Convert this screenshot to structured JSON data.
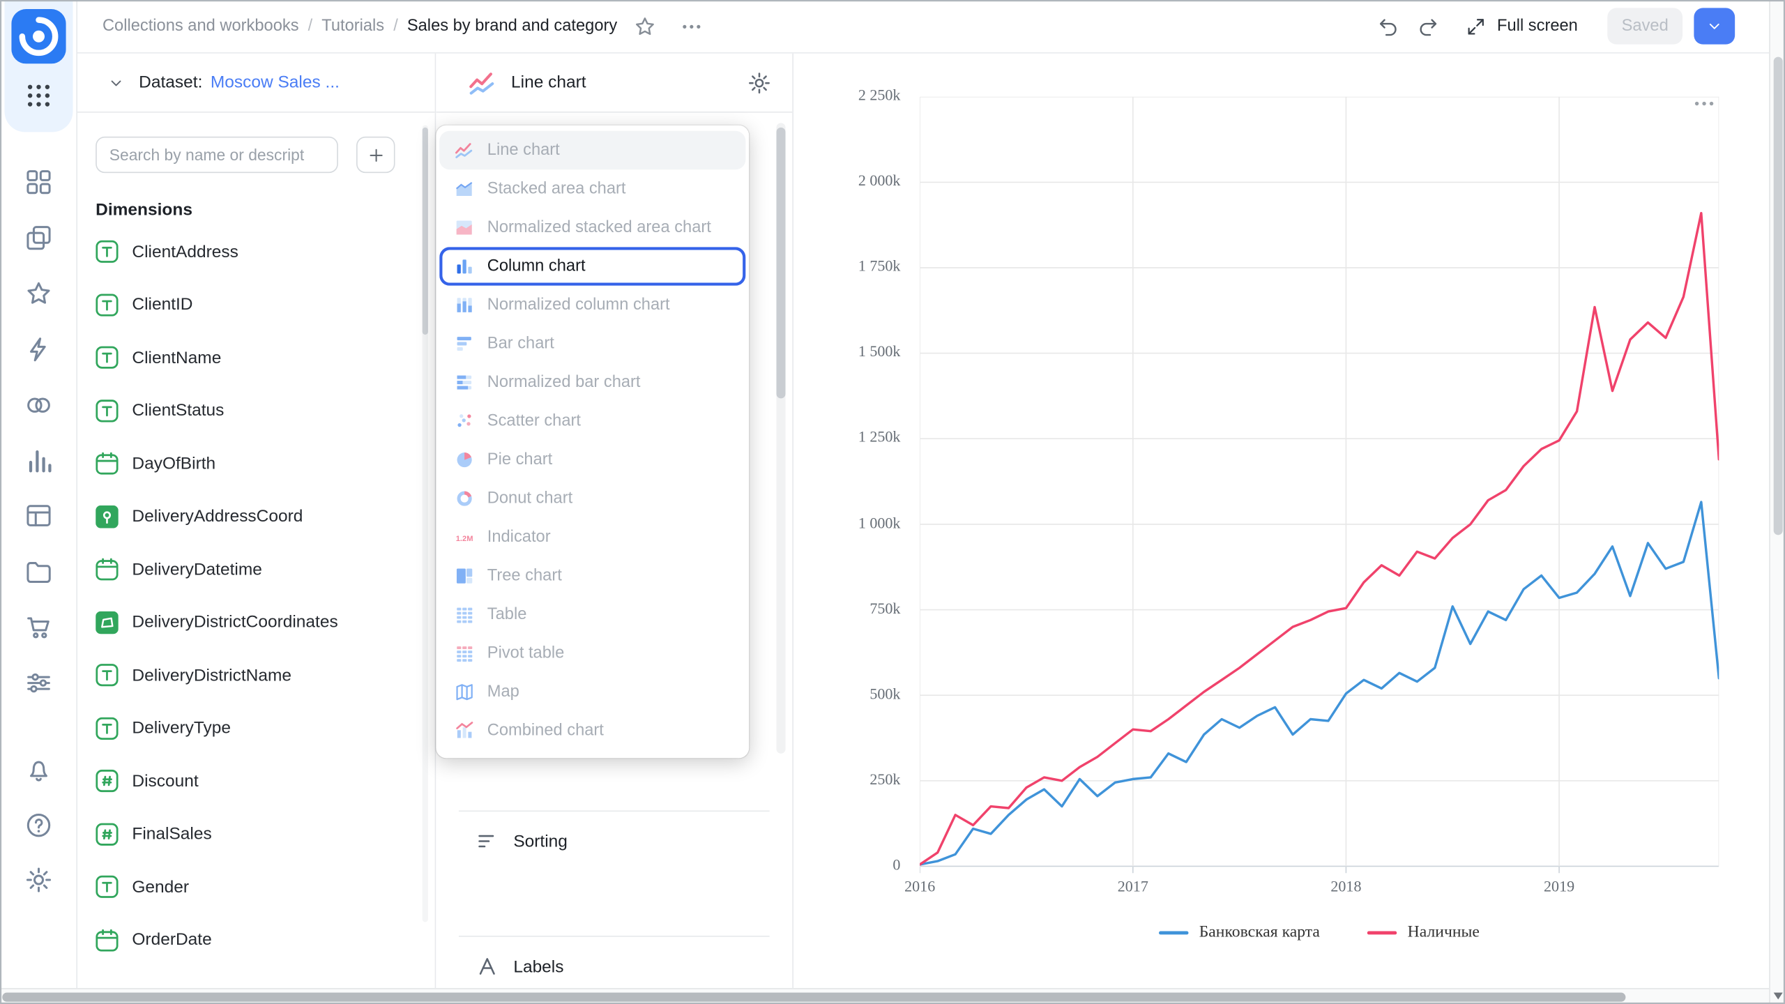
{
  "topbar": {
    "breadcrumbs": [
      "Collections and workbooks",
      "Tutorials",
      "Sales by brand and category"
    ],
    "actions": {
      "full_screen": "Full screen",
      "saved": "Saved"
    }
  },
  "rail": {
    "top_item": "apps-grid",
    "main_items": [
      "dashboards",
      "collections",
      "favorites",
      "functions",
      "services",
      "charts",
      "datasets",
      "storage",
      "marketplace",
      "filters"
    ],
    "bottom_items": [
      "notifications",
      "help",
      "settings"
    ]
  },
  "dataset_panel": {
    "collapse_label": "Dataset:",
    "dataset_name": "Moscow Sales ...",
    "search_placeholder": "Search by name or descript",
    "add_button_label": "+",
    "section_title": "Dimensions",
    "fields": [
      {
        "name": "ClientAddress",
        "type": "text"
      },
      {
        "name": "ClientID",
        "type": "text"
      },
      {
        "name": "ClientName",
        "type": "text"
      },
      {
        "name": "ClientStatus",
        "type": "text"
      },
      {
        "name": "DayOfBirth",
        "type": "date"
      },
      {
        "name": "DeliveryAddressCoord",
        "type": "geopoint"
      },
      {
        "name": "DeliveryDatetime",
        "type": "date"
      },
      {
        "name": "DeliveryDistrictCoordinates",
        "type": "geopolygon"
      },
      {
        "name": "DeliveryDistrictName",
        "type": "text"
      },
      {
        "name": "DeliveryType",
        "type": "text"
      },
      {
        "name": "Discount",
        "type": "number"
      },
      {
        "name": "FinalSales",
        "type": "number"
      },
      {
        "name": "Gender",
        "type": "text"
      },
      {
        "name": "OrderDate",
        "type": "date"
      }
    ]
  },
  "viz_panel": {
    "header": {
      "chart_type_label": "Line chart",
      "icon": "vt-line"
    },
    "chart_type_menu": [
      {
        "label": "Line chart",
        "icon": "vt-line",
        "state": "selected"
      },
      {
        "label": "Stacked area chart",
        "icon": "vt-area",
        "state": "muted"
      },
      {
        "label": "Normalized stacked area chart",
        "icon": "vt-area-norm",
        "state": "muted"
      },
      {
        "label": "Column chart",
        "icon": "vt-column",
        "state": "focused"
      },
      {
        "label": "Normalized column chart",
        "icon": "vt-column-norm",
        "state": "muted"
      },
      {
        "label": "Bar chart",
        "icon": "vt-bar",
        "state": "muted"
      },
      {
        "label": "Normalized bar chart",
        "icon": "vt-bar-norm",
        "state": "muted"
      },
      {
        "label": "Scatter chart",
        "icon": "vt-scatter",
        "state": "muted"
      },
      {
        "label": "Pie chart",
        "icon": "vt-pie",
        "state": "muted"
      },
      {
        "label": "Donut chart",
        "icon": "vt-donut",
        "state": "muted"
      },
      {
        "label": "Indicator",
        "icon": "vt-indicator",
        "state": "muted"
      },
      {
        "label": "Tree chart",
        "icon": "vt-tree",
        "state": "muted"
      },
      {
        "label": "Table",
        "icon": "vt-table",
        "state": "muted"
      },
      {
        "label": "Pivot table",
        "icon": "vt-pivot",
        "state": "muted"
      },
      {
        "label": "Map",
        "icon": "vt-map",
        "state": "muted"
      },
      {
        "label": "Combined chart",
        "icon": "vt-combined",
        "state": "muted"
      }
    ],
    "sections": [
      {
        "label": "Sorting",
        "icon": "sorting"
      },
      {
        "label": "Labels",
        "icon": "labels"
      }
    ]
  },
  "chart_data": {
    "type": "line",
    "x_unit": "month",
    "x_start": "2016-01",
    "x_axis": {
      "ticks": [
        "2016",
        "2017",
        "2018",
        "2019"
      ],
      "tick_month_index": [
        0,
        12,
        24,
        36
      ]
    },
    "y_axis": {
      "ticks": [
        "0",
        "250k",
        "500k",
        "750k",
        "1 000k",
        "1 250k",
        "1 500k",
        "1 750k",
        "2 000k",
        "2 250k"
      ],
      "max_thousands": 2250
    },
    "values_unit": "thousands",
    "grid": true,
    "legend_position": "bottom",
    "series": [
      {
        "name": "Банковская карта",
        "color": "#3f93d9",
        "values": [
          5,
          15,
          35,
          110,
          95,
          150,
          195,
          225,
          175,
          255,
          205,
          245,
          255,
          260,
          330,
          305,
          385,
          430,
          405,
          440,
          465,
          385,
          430,
          425,
          505,
          545,
          520,
          565,
          540,
          580,
          760,
          650,
          745,
          720,
          810,
          850,
          785,
          800,
          855,
          935,
          790,
          945,
          870,
          890,
          1065,
          550
        ]
      },
      {
        "name": "Наличные",
        "color": "#f0426b",
        "values": [
          5,
          40,
          150,
          120,
          175,
          170,
          230,
          260,
          250,
          290,
          320,
          360,
          400,
          395,
          430,
          470,
          510,
          545,
          580,
          620,
          660,
          700,
          720,
          745,
          755,
          830,
          880,
          850,
          920,
          900,
          960,
          1000,
          1070,
          1100,
          1170,
          1220,
          1245,
          1330,
          1635,
          1390,
          1540,
          1590,
          1545,
          1665,
          1910,
          1190
        ]
      }
    ]
  },
  "colors": {
    "accent_blue": "#4a7df5",
    "focus_ring": "#3563e9",
    "field_green": "#31a65c",
    "series_blue": "#3f93d9",
    "series_red": "#f0426b"
  }
}
